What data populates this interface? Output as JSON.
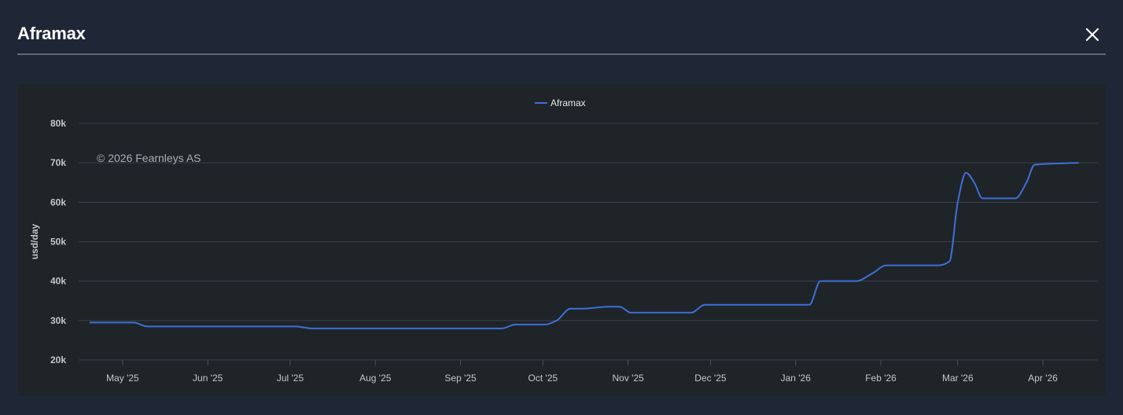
{
  "modal": {
    "title": "Aframax"
  },
  "colors": {
    "series": "#3e6fd8",
    "grid": "#3a4148",
    "background": "#1f2428"
  },
  "icons": {
    "close": "close-icon"
  },
  "chart_data": {
    "type": "line",
    "title": "",
    "xlabel": "",
    "ylabel": "usd/day",
    "credit": "© 2026 Fearnleys AS",
    "ylim": [
      20000,
      80000
    ],
    "yticks": [
      {
        "value": 20000,
        "label": "20k"
      },
      {
        "value": 30000,
        "label": "30k"
      },
      {
        "value": 40000,
        "label": "40k"
      },
      {
        "value": 50000,
        "label": "50k"
      },
      {
        "value": 60000,
        "label": "60k"
      },
      {
        "value": 70000,
        "label": "70k"
      },
      {
        "value": 80000,
        "label": "80k"
      }
    ],
    "xlim": [
      "2025-04-15",
      "2026-04-21"
    ],
    "xticks": [
      {
        "date": "2025-05-01",
        "label": "May '25"
      },
      {
        "date": "2025-06-01",
        "label": "Jun '25"
      },
      {
        "date": "2025-07-01",
        "label": "Jul '25"
      },
      {
        "date": "2025-08-01",
        "label": "Aug '25"
      },
      {
        "date": "2025-09-01",
        "label": "Sep '25"
      },
      {
        "date": "2025-10-01",
        "label": "Oct '25"
      },
      {
        "date": "2025-11-01",
        "label": "Nov '25"
      },
      {
        "date": "2025-12-01",
        "label": "Dec '25"
      },
      {
        "date": "2026-01-01",
        "label": "Jan '26"
      },
      {
        "date": "2026-02-01",
        "label": "Feb '26"
      },
      {
        "date": "2026-03-01",
        "label": "Mar '26"
      },
      {
        "date": "2026-04-01",
        "label": "Apr '26"
      }
    ],
    "legend": {
      "position": "top-center"
    },
    "grid": true,
    "series": [
      {
        "name": "Aframax",
        "color": "#3e6fd8",
        "x": [
          "2025-04-19",
          "2025-04-28",
          "2025-05-05",
          "2025-05-10",
          "2025-06-20",
          "2025-07-03",
          "2025-07-09",
          "2025-09-11",
          "2025-09-16",
          "2025-09-21",
          "2025-09-24",
          "2025-10-02",
          "2025-10-06",
          "2025-10-11",
          "2025-10-15",
          "2025-10-25",
          "2025-10-29",
          "2025-11-02",
          "2025-11-09",
          "2025-11-19",
          "2025-11-24",
          "2025-11-29",
          "2025-12-29",
          "2026-01-06",
          "2026-01-10",
          "2026-01-20",
          "2026-01-23",
          "2026-01-29",
          "2026-02-03",
          "2026-02-22",
          "2026-02-26",
          "2026-03-01",
          "2026-03-04",
          "2026-03-07",
          "2026-03-10",
          "2026-03-18",
          "2026-03-22",
          "2026-03-26",
          "2026-03-29",
          "2026-04-14"
        ],
        "values": [
          29500,
          29500,
          29500,
          28500,
          28500,
          28500,
          28000,
          28000,
          28000,
          29000,
          29000,
          29000,
          30000,
          33000,
          33000,
          33500,
          33500,
          32000,
          32000,
          32000,
          32000,
          34000,
          34000,
          34000,
          40000,
          40000,
          40000,
          42000,
          44000,
          44000,
          45000,
          60000,
          67500,
          65000,
          61000,
          61000,
          61000,
          65000,
          69500,
          70000
        ]
      }
    ]
  }
}
